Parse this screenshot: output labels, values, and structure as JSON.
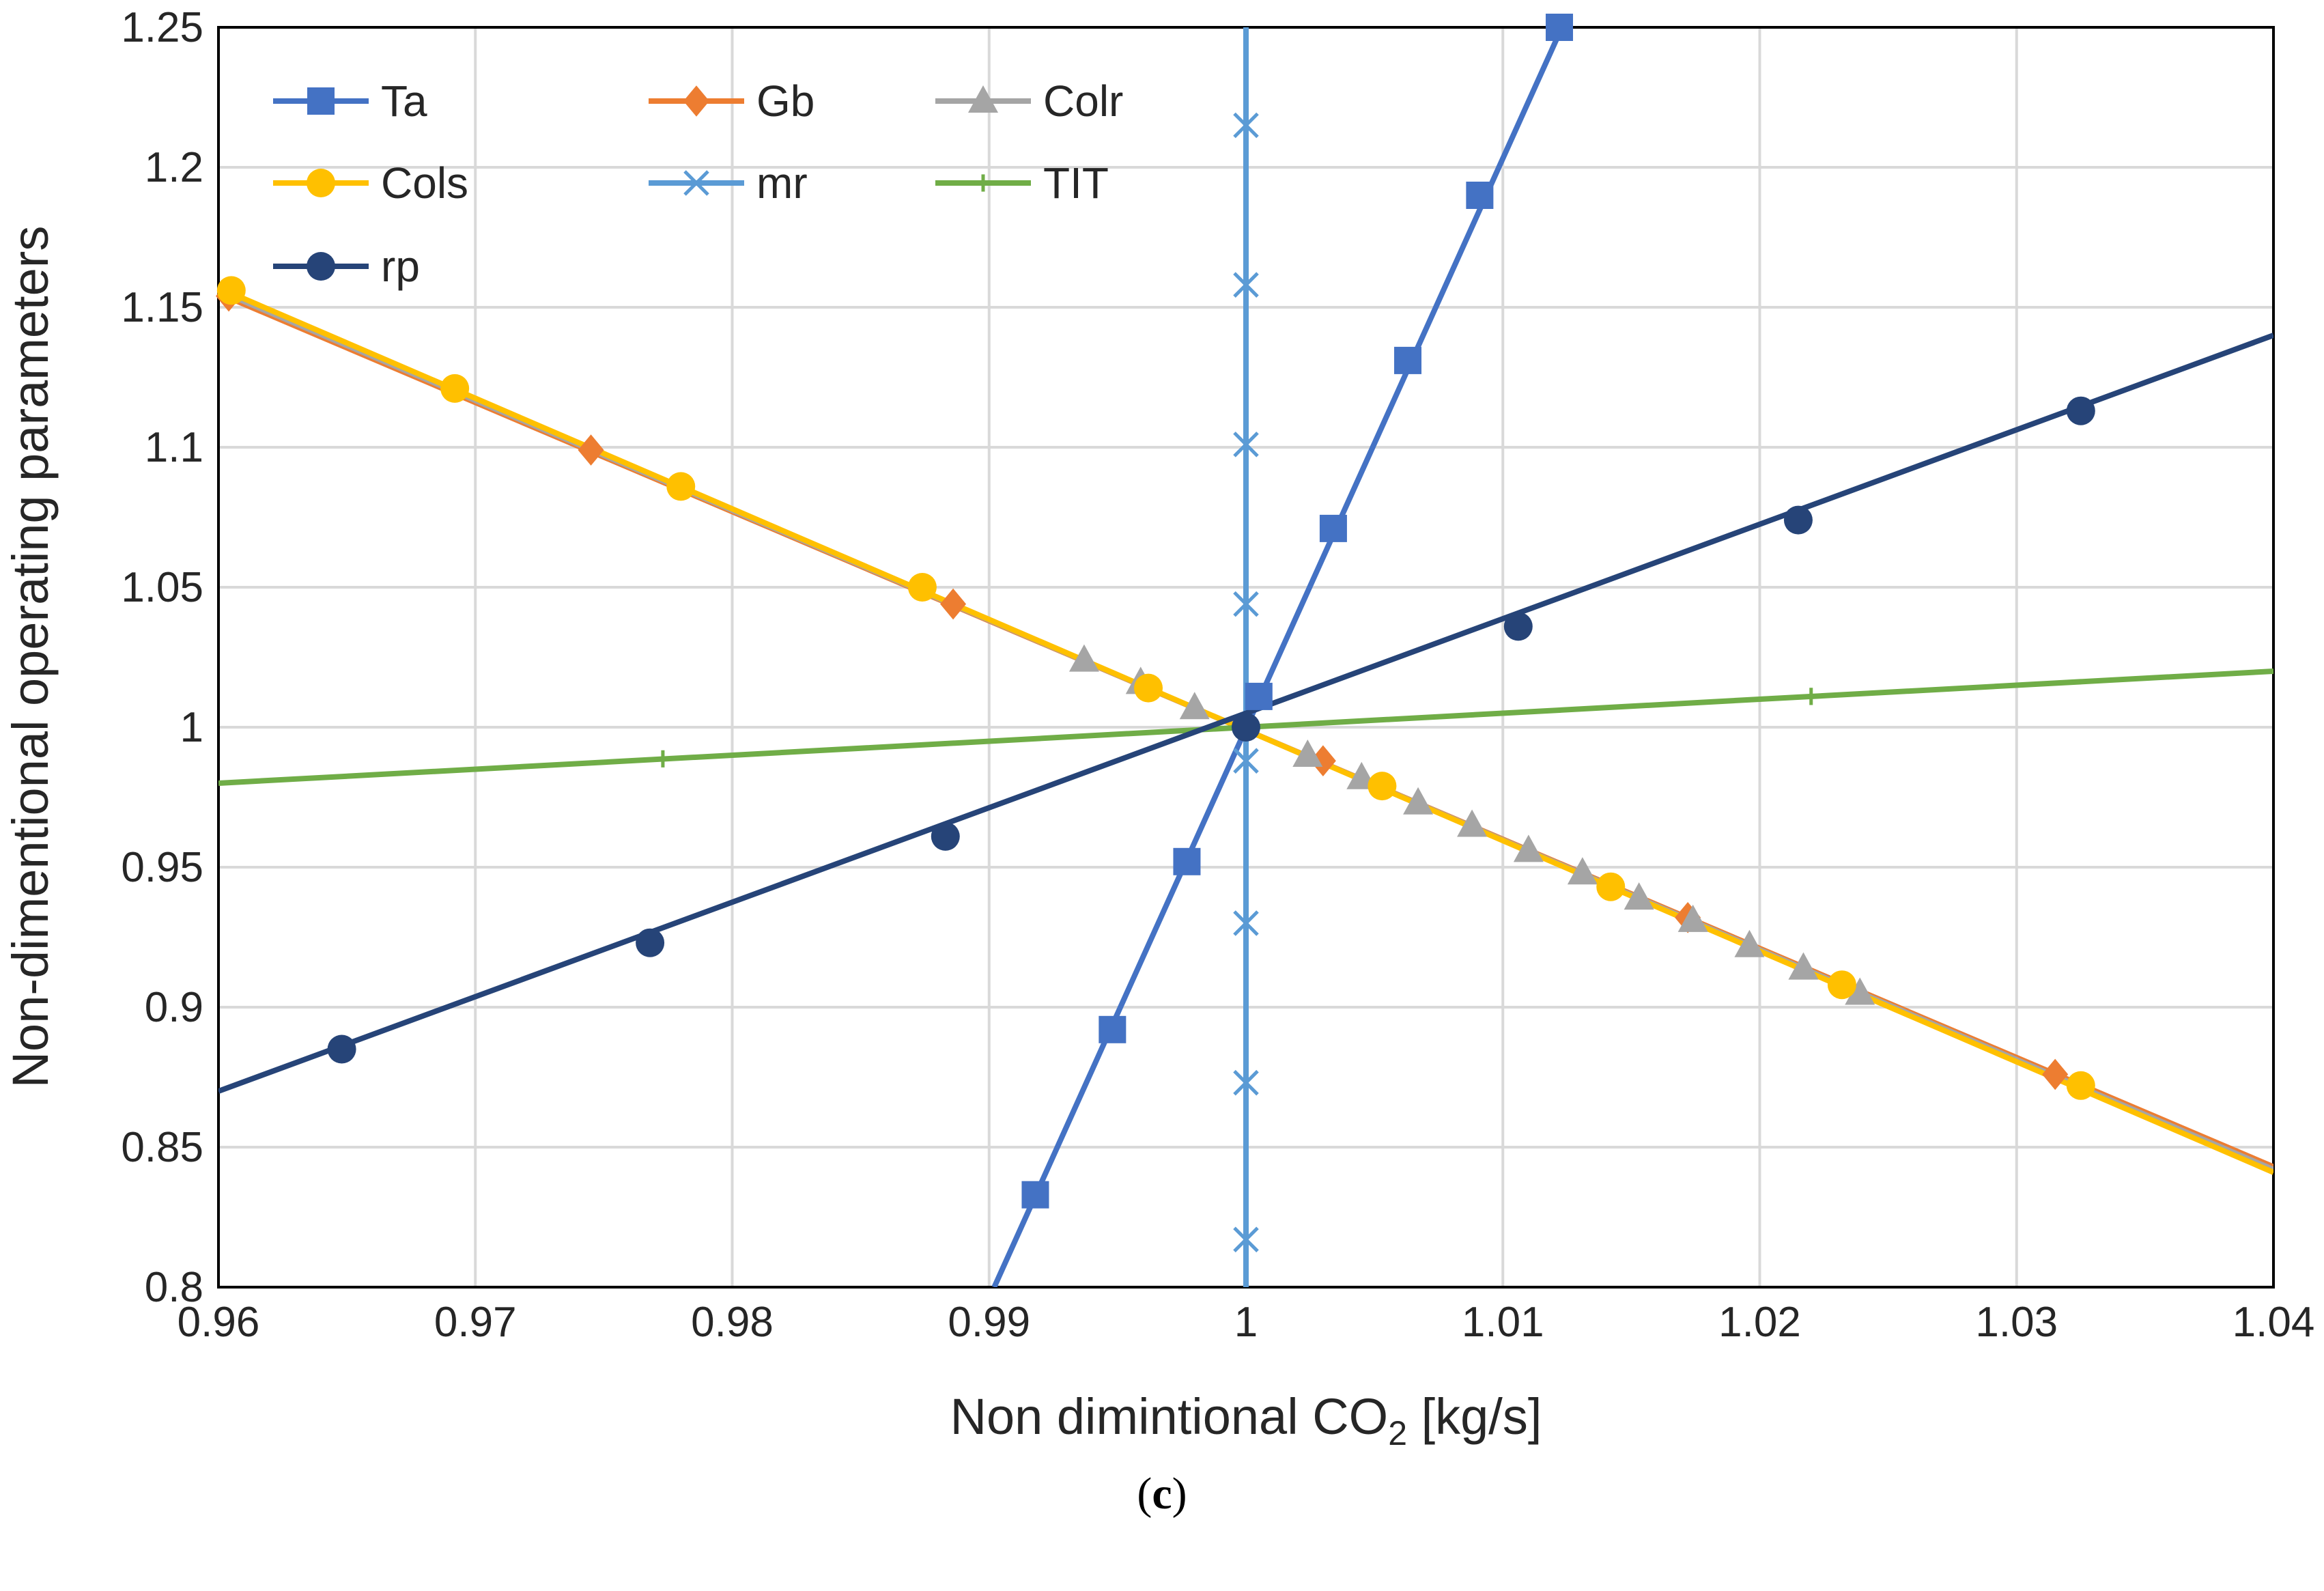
{
  "chart_data": {
    "type": "line",
    "xlabel_parts": [
      "Non dimintional CO",
      "2",
      " [kg/s]"
    ],
    "ylabel": "Non-dimentional operating parameters",
    "xlim": [
      0.96,
      1.04
    ],
    "ylim": [
      0.8,
      1.25
    ],
    "x_ticks": [
      0.96,
      0.97,
      0.98,
      0.99,
      1.0,
      1.01,
      1.02,
      1.03,
      1.04
    ],
    "x_tick_labels": [
      "0.96",
      "0.97",
      "0.98",
      "0.99",
      "1",
      "1.01",
      "1.02",
      "1.03",
      "1.04"
    ],
    "y_ticks": [
      0.8,
      0.85,
      0.9,
      0.95,
      1.0,
      1.05,
      1.1,
      1.15,
      1.2,
      1.25
    ],
    "y_tick_labels": [
      "0.8",
      "0.85",
      "0.9",
      "0.95",
      "1",
      "1.05",
      "1.1",
      "1.15",
      "1.2",
      "1.25"
    ],
    "grid": true,
    "legend_position": "top-left",
    "series": [
      {
        "name": "Ta",
        "color": "#4472c4",
        "marker": "square",
        "line": [
          [
            0.9902,
            0.8
          ],
          [
            1.0123,
            1.25
          ]
        ],
        "markers": [
          [
            0.9918,
            0.833
          ],
          [
            0.9948,
            0.892
          ],
          [
            0.9977,
            0.952
          ],
          [
            1.0005,
            1.011
          ],
          [
            1.0034,
            1.071
          ],
          [
            1.0063,
            1.131
          ],
          [
            1.0091,
            1.19
          ],
          [
            1.0122,
            1.25
          ]
        ]
      },
      {
        "name": "Gb",
        "color": "#ed7d31",
        "marker": "diamond",
        "line": [
          [
            0.96,
            1.155
          ],
          [
            1.04,
            0.843
          ]
        ],
        "markers": [
          [
            0.9604,
            1.154
          ],
          [
            0.9745,
            1.099
          ],
          [
            0.9886,
            1.044
          ],
          [
            1.003,
            0.988
          ],
          [
            1.0172,
            0.932
          ],
          [
            1.0315,
            0.876
          ]
        ]
      },
      {
        "name": "Colr",
        "color": "#a5a5a5",
        "marker": "triangle",
        "line": [
          [
            0.96,
            1.156
          ],
          [
            1.04,
            0.842
          ]
        ],
        "markers": [
          [
            0.9937,
            1.024
          ],
          [
            0.9959,
            1.016
          ],
          [
            0.998,
            1.007
          ],
          [
            1.0024,
            0.99
          ],
          [
            1.0045,
            0.982
          ],
          [
            1.0067,
            0.973
          ],
          [
            1.0088,
            0.965
          ],
          [
            1.011,
            0.956
          ],
          [
            1.0131,
            0.948
          ],
          [
            1.0153,
            0.939
          ],
          [
            1.0174,
            0.931
          ],
          [
            1.0196,
            0.922
          ],
          [
            1.0217,
            0.914
          ],
          [
            1.0239,
            0.905
          ]
        ]
      },
      {
        "name": "Cols",
        "color": "#ffc000",
        "marker": "circle",
        "line": [
          [
            0.96,
            1.157
          ],
          [
            1.04,
            0.841
          ]
        ],
        "markers": [
          [
            0.9605,
            1.156
          ],
          [
            0.9692,
            1.121
          ],
          [
            0.978,
            1.086
          ],
          [
            0.9874,
            1.05
          ],
          [
            0.9962,
            1.014
          ],
          [
            1.0053,
            0.979
          ],
          [
            1.0142,
            0.943
          ],
          [
            1.0232,
            0.908
          ],
          [
            1.0325,
            0.872
          ]
        ]
      },
      {
        "name": "mr",
        "color": "#5b9bd5",
        "marker": "x",
        "line": [
          [
            1.0,
            0.8
          ],
          [
            1.0,
            1.25
          ]
        ],
        "markers": [
          [
            1.0,
            1.215
          ],
          [
            1.0,
            1.158
          ],
          [
            1.0,
            1.101
          ],
          [
            1.0,
            1.044
          ],
          [
            1.0,
            0.988
          ],
          [
            1.0,
            0.93
          ],
          [
            1.0,
            0.873
          ],
          [
            1.0,
            0.817
          ]
        ]
      },
      {
        "name": "TIT",
        "color": "#70ad47",
        "marker": "plus",
        "line": [
          [
            0.96,
            0.98
          ],
          [
            1.04,
            1.02
          ]
        ],
        "markers": [
          [
            0.9773,
            0.9887
          ],
          [
            1.022,
            1.011
          ]
        ]
      },
      {
        "name": "rp",
        "color": "#264478",
        "marker": "circle",
        "line": [
          [
            0.96,
            0.87
          ],
          [
            1.04,
            1.14
          ]
        ],
        "markers": [
          [
            0.9648,
            0.885
          ],
          [
            0.9768,
            0.923
          ],
          [
            0.9883,
            0.961
          ],
          [
            1.0,
            1.0
          ],
          [
            1.0106,
            1.036
          ],
          [
            1.0215,
            1.074
          ],
          [
            1.0325,
            1.113
          ]
        ]
      }
    ]
  },
  "caption": {
    "open": "(",
    "letter": "c",
    "close": ")"
  }
}
